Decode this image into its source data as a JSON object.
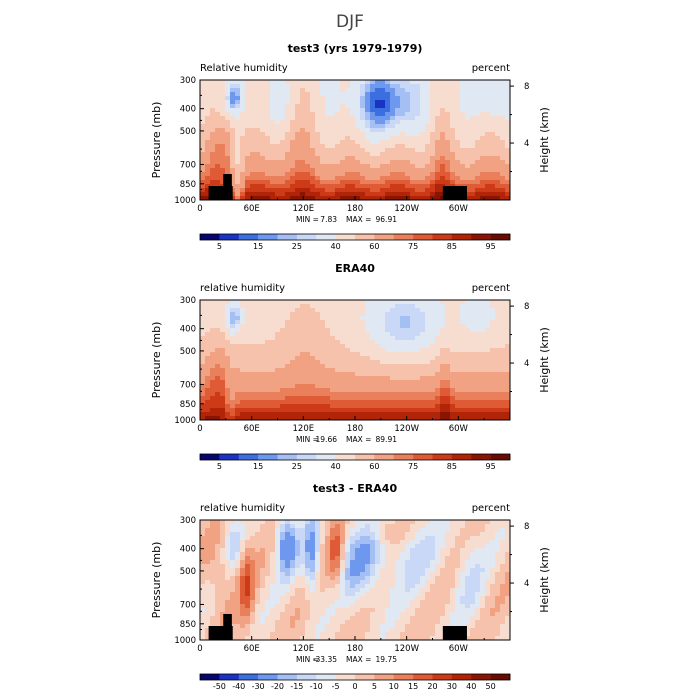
{
  "figure": {
    "title": "DJF"
  },
  "chart_data": [
    {
      "type": "heatmap",
      "title": "test3 (yrs 1979-1979)",
      "left_string": "Relative humidity",
      "right_string": "percent",
      "ylabel": "Pressure (mb)",
      "ylabel_right": "Height (km)",
      "x_ticks": [
        "0",
        "60E",
        "120E",
        "180",
        "120W",
        "60W"
      ],
      "x_tick_values": [
        0,
        60,
        120,
        180,
        240,
        300
      ],
      "xlim": [
        0,
        360
      ],
      "y_ticks": [
        "300",
        "400",
        "500",
        "700",
        "850",
        "1000"
      ],
      "y_tick_values": [
        300,
        400,
        500,
        700,
        850,
        1000
      ],
      "ylim": [
        1000,
        300
      ],
      "right_ticks": [
        "8",
        "4"
      ],
      "right_tick_values": [
        8,
        4
      ],
      "stats": {
        "min_label": "MIN =",
        "min": "7.83",
        "max_label": "MAX =",
        "max": "96.91"
      },
      "colorbar": {
        "labels": [
          "5",
          "15",
          "25",
          "40",
          "60",
          "75",
          "85",
          "95"
        ],
        "colors": [
          "#06066e",
          "#1a33c4",
          "#3b6fe0",
          "#6d98ee",
          "#a3bff4",
          "#c8d8f6",
          "#e0e8f4",
          "#f7dcd0",
          "#f6c2ac",
          "#f1a282",
          "#ea7f5b",
          "#df5b35",
          "#cd3a17",
          "#b12408",
          "#8a1402",
          "#660c00"
        ]
      },
      "field_kind": "model_rh",
      "has_topography": true
    },
    {
      "type": "heatmap",
      "title": "ERA40",
      "left_string": "relative humidity",
      "right_string": "percent",
      "ylabel": "Pressure (mb)",
      "ylabel_right": "Height (km)",
      "x_ticks": [
        "0",
        "60E",
        "120E",
        "180",
        "120W",
        "60W"
      ],
      "x_tick_values": [
        0,
        60,
        120,
        180,
        240,
        300
      ],
      "xlim": [
        0,
        360
      ],
      "y_ticks": [
        "300",
        "400",
        "500",
        "700",
        "850",
        "1000"
      ],
      "y_tick_values": [
        300,
        400,
        500,
        700,
        850,
        1000
      ],
      "ylim": [
        1000,
        300
      ],
      "right_ticks": [
        "8",
        "4"
      ],
      "right_tick_values": [
        8,
        4
      ],
      "stats": {
        "min_label": "MIN =",
        "min": "19.66",
        "max_label": "MAX =",
        "max": "89.91"
      },
      "colorbar": {
        "labels": [
          "5",
          "15",
          "25",
          "40",
          "60",
          "75",
          "85",
          "95"
        ],
        "colors": [
          "#06066e",
          "#1a33c4",
          "#3b6fe0",
          "#6d98ee",
          "#a3bff4",
          "#c8d8f6",
          "#e0e8f4",
          "#f7dcd0",
          "#f6c2ac",
          "#f1a282",
          "#ea7f5b",
          "#df5b35",
          "#cd3a17",
          "#b12408",
          "#8a1402",
          "#660c00"
        ]
      },
      "field_kind": "obs_rh",
      "has_topography": false
    },
    {
      "type": "heatmap",
      "title": "test3 - ERA40",
      "left_string": "relative humidity",
      "right_string": "percent",
      "ylabel": "Pressure (mb)",
      "ylabel_right": "Height (km)",
      "x_ticks": [
        "0",
        "60E",
        "120E",
        "180",
        "120W",
        "60W"
      ],
      "x_tick_values": [
        0,
        60,
        120,
        180,
        240,
        300
      ],
      "xlim": [
        0,
        360
      ],
      "y_ticks": [
        "300",
        "400",
        "500",
        "700",
        "850",
        "1000"
      ],
      "y_tick_values": [
        300,
        400,
        500,
        700,
        850,
        1000
      ],
      "ylim": [
        1000,
        300
      ],
      "right_ticks": [
        "8",
        "4"
      ],
      "right_tick_values": [
        8,
        4
      ],
      "stats": {
        "min_label": "MIN =",
        "min": "-33.35",
        "max_label": "MAX =",
        "max": "19.75"
      },
      "colorbar": {
        "labels": [
          "-50",
          "-40",
          "-30",
          "-20",
          "-15",
          "-10",
          "-5",
          "0",
          "5",
          "10",
          "15",
          "20",
          "30",
          "40",
          "50"
        ],
        "colors": [
          "#06066e",
          "#1a33c4",
          "#3b6fe0",
          "#6d98ee",
          "#a3bff4",
          "#c8d8f6",
          "#e0e8f4",
          "#f7dcd0",
          "#f6c2ac",
          "#f1a282",
          "#ea7f5b",
          "#df5b35",
          "#cd3a17",
          "#b12408",
          "#8a1402",
          "#660c00"
        ]
      },
      "field_kind": "diff_rh",
      "has_topography": true
    }
  ]
}
